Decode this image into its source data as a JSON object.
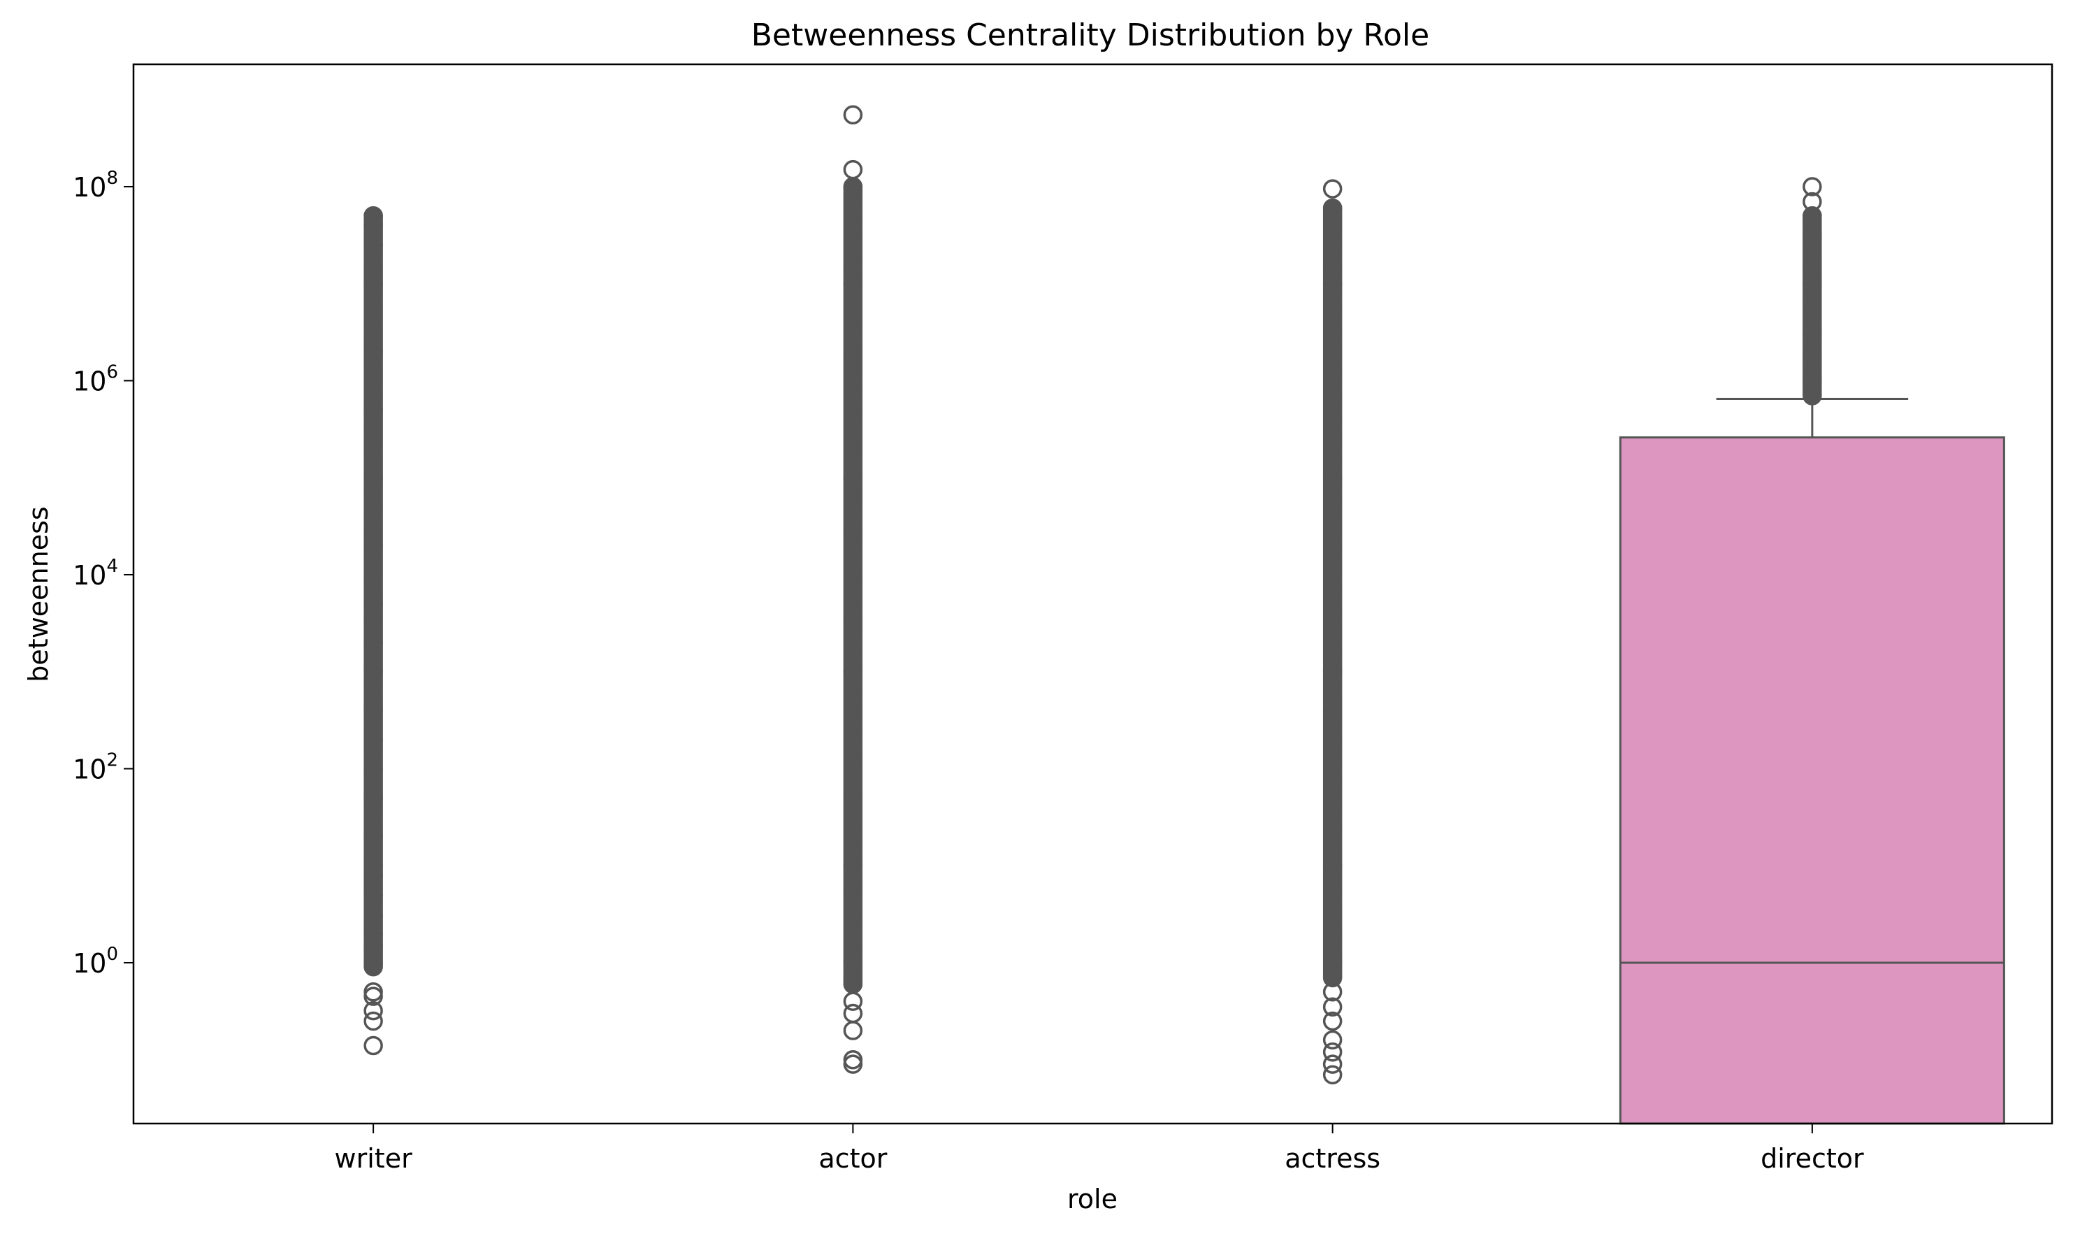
{
  "chart_data": {
    "type": "box",
    "title": "Betweenness Centrality Distribution by Role",
    "xlabel": "role",
    "ylabel": "betweenness",
    "yscale": "log",
    "ylim": [
      0.02,
      2000000000
    ],
    "grid": false,
    "legend": "none",
    "categories": [
      "writer",
      "actor",
      "actress",
      "director"
    ],
    "y_ticks": [
      {
        "base": "10",
        "exp": "0",
        "value": 1
      },
      {
        "base": "10",
        "exp": "2",
        "value": 100
      },
      {
        "base": "10",
        "exp": "4",
        "value": 10000
      },
      {
        "base": "10",
        "exp": "6",
        "value": 1000000
      },
      {
        "base": "10",
        "exp": "8",
        "value": 100000000
      }
    ],
    "boxes": [
      {
        "category": "writer",
        "box": null,
        "outliers": [
          0.14,
          0.25,
          0.32,
          0.45,
          0.5,
          1,
          1.5,
          2,
          3,
          5,
          8,
          10,
          20,
          50,
          100,
          200,
          400,
          1000,
          2000,
          5000,
          20000,
          100000,
          500000,
          2000000,
          10000000,
          25000000,
          40000000,
          50000000
        ],
        "outlier_range": [
          0.9,
          50000000
        ]
      },
      {
        "category": "actor",
        "box": null,
        "outliers": [
          0.09,
          0.1,
          0.2,
          0.3,
          0.4,
          0.6,
          1,
          10,
          1000,
          100000,
          10000000,
          100000000,
          150000000,
          550000000
        ],
        "outlier_range": [
          0.6,
          100000000
        ]
      },
      {
        "category": "actress",
        "box": null,
        "outliers": [
          0.07,
          0.09,
          0.12,
          0.16,
          0.25,
          0.35,
          0.5,
          0.7,
          1,
          10,
          1000,
          100000,
          10000000,
          60000000,
          95000000
        ],
        "outlier_range": [
          0.7,
          60000000
        ]
      },
      {
        "category": "director",
        "box": {
          "whisker_low": 0.02,
          "q1": 0.02,
          "median": 1,
          "q3": 260000,
          "whisker_high": 650000
        },
        "color": "#dc96c0",
        "outliers": [
          700000,
          1000000,
          3000000,
          10000000,
          30000000,
          50000000,
          70000000,
          100000000
        ],
        "outlier_range": [
          700000,
          50000000
        ]
      }
    ]
  }
}
